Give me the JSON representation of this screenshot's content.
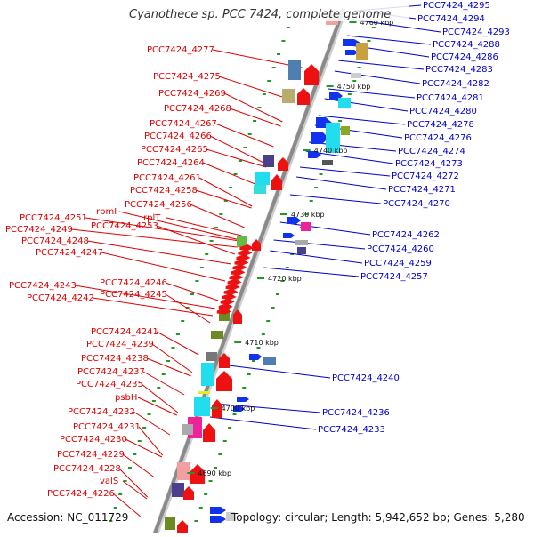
{
  "title": "Cyanothece sp. PCC 7424, complete genome",
  "footer": {
    "accession": "Accession: NC_011729",
    "info": "Topology: circular; Length: 5,942,652 bp; Genes: 5,280"
  },
  "colors": {
    "left_label": "#dd0000",
    "right_label": "#0000cc",
    "forward_gene": "#ee1111",
    "reverse_gene": "#1133ee",
    "backbone": "#8a8a8a",
    "tick": "#229922"
  },
  "scale_marks": [
    "4690 kbp",
    "4700 kbp",
    "4710 kbp",
    "4720 kbp",
    "4730 kbp",
    "4740 kbp",
    "4750 kbp",
    "4760 kbp"
  ],
  "left_labels": [
    "PCC7424_4277",
    "PCC7424_4275",
    "PCC7424_4269",
    "PCC7424_4268",
    "PCC7424_4267",
    "PCC7424_4266",
    "PCC7424_4265",
    "PCC7424_4264",
    "PCC7424_4261",
    "PCC7424_4258",
    "PCC7424_4256",
    "rpmI",
    "rplT",
    "PCC7424_4251",
    "PCC7424_4253",
    "PCC7424_4249",
    "PCC7424_4248",
    "PCC7424_4247",
    "PCC7424_4246",
    "PCC7424_4243",
    "PCC7424_4245",
    "PCC7424_4242",
    "PCC7424_4241",
    "PCC7424_4239",
    "PCC7424_4238",
    "PCC7424_4237",
    "PCC7424_4235",
    "psbH",
    "PCC7424_4232",
    "PCC7424_4231",
    "PCC7424_4230",
    "PCC7424_4229",
    "PCC7424_4228",
    "valS",
    "PCC7424_4226"
  ],
  "right_labels": [
    "PCC7424_4295",
    "PCC7424_4294",
    "PCC7424_4293",
    "PCC7424_4288",
    "PCC7424_4286",
    "PCC7424_4283",
    "PCC7424_4282",
    "PCC7424_4281",
    "PCC7424_4280",
    "PCC7424_4278",
    "PCC7424_4276",
    "PCC7424_4274",
    "PCC7424_4273",
    "PCC7424_4272",
    "PCC7424_4271",
    "PCC7424_4270",
    "PCC7424_4262",
    "PCC7424_4260",
    "PCC7424_4259",
    "PCC7424_4257",
    "PCC7424_4240",
    "PCC7424_4236",
    "PCC7424_4233"
  ]
}
